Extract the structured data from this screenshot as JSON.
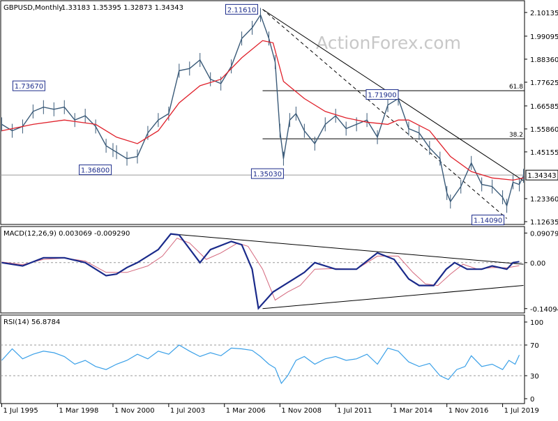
{
  "header": {
    "symbol": "GBPUSD,Monthly",
    "ohlc": "1.33183 1.35395 1.32873 1.34343"
  },
  "watermark": "ActionForex.com",
  "colors": {
    "price": "#3a5a78",
    "ma": "#e0202a",
    "macd": "#1a2a8a",
    "signal": "#d4677c",
    "rsi": "#3aa0e8",
    "grid": "#9a9a9a",
    "trendline": "#000000",
    "label_border": "#1a2a8a"
  },
  "chart_data": [
    {
      "type": "line",
      "panel": "price",
      "title": "GBPUSD,Monthly",
      "ylim": [
        1.12635,
        2.14
      ],
      "y_tick_labels": [
        "2.10135",
        "1.99095",
        "1.88360",
        "1.77625",
        "1.66585",
        "1.55860",
        "1.45155",
        "1.34343",
        "1.23360",
        "1.12635"
      ],
      "y_ticks": [
        2.10135,
        1.99095,
        1.8836,
        1.77625,
        1.66585,
        1.5586,
        1.45155,
        1.34343,
        1.2336,
        1.12635
      ],
      "current_price_label": "1.34343",
      "current_price": 1.34343,
      "x_tick_labels": [
        "1 Jul 1995",
        "1 Mar 1998",
        "1 Nov 2000",
        "1 Jul 2003",
        "1 Mar 2006",
        "1 Nov 2008",
        "1 Jul 2011",
        "1 Mar 2014",
        "1 Nov 2016",
        "1 Jul 2019"
      ],
      "x_ticks": [
        1995.5,
        1998.17,
        2000.83,
        2003.5,
        2006.17,
        2008.83,
        2011.5,
        2014.17,
        2016.83,
        2019.5
      ],
      "xlim": [
        1995.45,
        2020.55
      ],
      "annotations": [
        {
          "label": "2.11610",
          "x": 2007.9,
          "y": 2.1161
        },
        {
          "label": "1.73670",
          "x": 1996.8,
          "y": 1.7367
        },
        {
          "label": "1.36800",
          "x": 2000.75,
          "y": 1.368
        },
        {
          "label": "1.35030",
          "x": 2009.0,
          "y": 1.3503
        },
        {
          "label": "1.71900",
          "x": 2014.5,
          "y": 1.719
        },
        {
          "label": "1.14090",
          "x": 2019.7,
          "y": 1.1409
        }
      ],
      "fib_levels": [
        {
          "label": "61.8",
          "y": 1.7367
        },
        {
          "label": "38.2",
          "y": 1.5125
        }
      ],
      "trendlines": [
        {
          "style": "solid",
          "x1": 2008.0,
          "y1": 2.1161,
          "x2": 2020.5,
          "y2": 1.317
        },
        {
          "style": "dashed",
          "x1": 2008.0,
          "y1": 2.1161,
          "x2": 2019.7,
          "y2": 1.1409
        }
      ],
      "series": [
        {
          "kind": "price",
          "x": [
            1995.5,
            1996.0,
            1996.5,
            1997.0,
            1997.5,
            1998.0,
            1998.5,
            1999.0,
            1999.5,
            2000.0,
            2000.5,
            2000.83,
            2001.0,
            2001.5,
            2002.0,
            2002.5,
            2003.0,
            2003.5,
            2004.0,
            2004.5,
            2005.0,
            2005.5,
            2006.0,
            2006.5,
            2007.0,
            2007.5,
            2007.9,
            2008.3,
            2008.6,
            2008.83,
            2009.0,
            2009.3,
            2009.6,
            2010.0,
            2010.5,
            2011.0,
            2011.5,
            2012.0,
            2012.5,
            2013.0,
            2013.5,
            2014.0,
            2014.5,
            2015.0,
            2015.5,
            2016.0,
            2016.5,
            2016.83,
            2017.0,
            2017.5,
            2018.0,
            2018.5,
            2019.0,
            2019.5,
            2019.7,
            2020.0,
            2020.3,
            2020.5
          ],
          "values": [
            1.58,
            1.55,
            1.57,
            1.64,
            1.66,
            1.65,
            1.66,
            1.6,
            1.62,
            1.57,
            1.48,
            1.46,
            1.45,
            1.42,
            1.43,
            1.54,
            1.6,
            1.63,
            1.83,
            1.84,
            1.88,
            1.79,
            1.77,
            1.85,
            1.98,
            2.03,
            2.09,
            1.98,
            1.87,
            1.55,
            1.42,
            1.6,
            1.63,
            1.55,
            1.49,
            1.58,
            1.62,
            1.56,
            1.58,
            1.6,
            1.52,
            1.67,
            1.7,
            1.56,
            1.54,
            1.47,
            1.42,
            1.26,
            1.22,
            1.29,
            1.4,
            1.3,
            1.29,
            1.24,
            1.2,
            1.31,
            1.3,
            1.34
          ]
        },
        {
          "kind": "moving_average",
          "x": [
            1995.5,
            1997.0,
            1998.5,
            2000.0,
            2001.0,
            2002.0,
            2003.0,
            2004.0,
            2005.0,
            2006.0,
            2007.0,
            2008.0,
            2008.5,
            2009.0,
            2010.0,
            2011.0,
            2012.0,
            2013.0,
            2014.0,
            2014.5,
            2015.0,
            2016.0,
            2017.0,
            2018.0,
            2019.0,
            2020.0,
            2020.5
          ],
          "values": [
            1.55,
            1.58,
            1.6,
            1.58,
            1.52,
            1.49,
            1.55,
            1.68,
            1.76,
            1.79,
            1.89,
            1.97,
            1.96,
            1.78,
            1.7,
            1.64,
            1.61,
            1.59,
            1.58,
            1.6,
            1.6,
            1.55,
            1.43,
            1.36,
            1.33,
            1.32,
            1.33
          ]
        }
      ]
    },
    {
      "type": "line",
      "panel": "macd",
      "title": "MACD(12,26,9) 0.003069 -0.009290",
      "ylim": [
        -0.15,
        0.1
      ],
      "y_tick_labels": [
        "0.090798",
        "0.00",
        "-0.14094"
      ],
      "y_ticks": [
        0.090798,
        0.0,
        -0.14094
      ],
      "trendlines": [
        {
          "style": "solid",
          "x1": 2003.6,
          "y1": 0.088,
          "x2": 2020.5,
          "y2": -0.005
        },
        {
          "style": "solid",
          "x1": 2008.0,
          "y1": -0.14094,
          "x2": 2020.5,
          "y2": -0.07
        }
      ],
      "series": [
        {
          "name": "MACD",
          "x": [
            1995.5,
            1996.5,
            1997.5,
            1998.5,
            1999.5,
            2000.5,
            2001.0,
            2001.5,
            2002.0,
            2003.0,
            2003.6,
            2004.0,
            2005.0,
            2005.5,
            2006.5,
            2007.0,
            2007.5,
            2007.8,
            2008.5,
            2009.0,
            2009.5,
            2010.0,
            2010.5,
            2011.5,
            2012.5,
            2013.5,
            2014.3,
            2015.0,
            2015.5,
            2016.2,
            2016.8,
            2017.2,
            2017.8,
            2018.5,
            2019.0,
            2019.7,
            2020.0,
            2020.3
          ],
          "values": [
            0.0,
            -0.01,
            0.015,
            0.015,
            0.0,
            -0.04,
            -0.035,
            -0.015,
            0.0,
            0.04,
            0.088,
            0.085,
            0.0,
            0.04,
            0.065,
            0.055,
            -0.02,
            -0.14,
            -0.09,
            -0.07,
            -0.05,
            -0.03,
            0.0,
            -0.02,
            -0.02,
            0.03,
            0.01,
            -0.05,
            -0.07,
            -0.07,
            -0.02,
            0.0,
            -0.02,
            -0.02,
            -0.01,
            -0.02,
            0.0,
            0.003069
          ]
        },
        {
          "name": "Signal",
          "x": [
            1995.5,
            1996.5,
            1997.5,
            1998.5,
            1999.5,
            2000.5,
            2001.5,
            2002.5,
            2003.2,
            2003.9,
            2004.5,
            2005.3,
            2006.0,
            2006.8,
            2007.3,
            2008.0,
            2008.6,
            2009.2,
            2009.8,
            2010.5,
            2011.5,
            2012.5,
            2013.5,
            2014.5,
            2015.2,
            2015.8,
            2016.4,
            2017.0,
            2017.6,
            2018.3,
            2019.0,
            2019.7,
            2020.3
          ],
          "values": [
            0.002,
            -0.006,
            0.01,
            0.014,
            0.005,
            -0.03,
            -0.03,
            -0.01,
            0.02,
            0.075,
            0.06,
            0.01,
            0.03,
            0.06,
            0.05,
            -0.02,
            -0.115,
            -0.09,
            -0.07,
            -0.02,
            -0.018,
            -0.02,
            0.02,
            0.02,
            -0.03,
            -0.065,
            -0.07,
            -0.035,
            -0.005,
            -0.02,
            -0.015,
            -0.016,
            -0.00929
          ]
        }
      ]
    },
    {
      "type": "line",
      "panel": "rsi",
      "title": "RSI(14) 56.8784",
      "ylim": [
        0,
        100
      ],
      "y_tick_labels": [
        "100",
        "70",
        "30",
        "0"
      ],
      "y_ticks": [
        100,
        70,
        30,
        0
      ],
      "series": [
        {
          "name": "RSI",
          "x": [
            1995.5,
            1996.0,
            1996.5,
            1997.0,
            1997.5,
            1998.0,
            1998.5,
            1999.0,
            1999.5,
            2000.0,
            2000.5,
            2001.0,
            2001.5,
            2002.0,
            2002.5,
            2003.0,
            2003.5,
            2004.0,
            2004.5,
            2005.0,
            2005.5,
            2006.0,
            2006.5,
            2007.0,
            2007.5,
            2007.9,
            2008.3,
            2008.6,
            2008.9,
            2009.2,
            2009.6,
            2010.0,
            2010.5,
            2011.0,
            2011.5,
            2012.0,
            2012.5,
            2013.0,
            2013.5,
            2014.0,
            2014.5,
            2015.0,
            2015.5,
            2016.0,
            2016.5,
            2016.9,
            2017.3,
            2017.7,
            2018.0,
            2018.5,
            2019.0,
            2019.5,
            2019.8,
            2020.1,
            2020.3
          ],
          "values": [
            50,
            65,
            52,
            58,
            62,
            60,
            55,
            45,
            50,
            42,
            38,
            45,
            50,
            58,
            52,
            62,
            58,
            70,
            62,
            55,
            60,
            56,
            66,
            65,
            63,
            55,
            45,
            40,
            20,
            30,
            50,
            55,
            45,
            52,
            55,
            50,
            52,
            58,
            45,
            66,
            62,
            48,
            42,
            46,
            30,
            25,
            38,
            42,
            56,
            42,
            45,
            38,
            50,
            45,
            56.8784
          ]
        }
      ]
    }
  ]
}
